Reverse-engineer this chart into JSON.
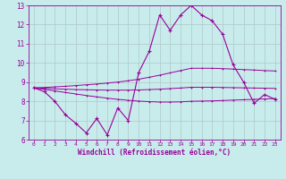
{
  "xlabel": "Windchill (Refroidissement éolien,°C)",
  "bg_color": "#c8ecec",
  "grid_color": "#b0c8c8",
  "line_color": "#990099",
  "x_values": [
    0,
    1,
    2,
    3,
    4,
    5,
    6,
    7,
    8,
    9,
    10,
    11,
    12,
    13,
    14,
    15,
    16,
    17,
    18,
    19,
    20,
    21,
    22,
    23
  ],
  "line_main": [
    8.7,
    8.5,
    8.0,
    7.3,
    6.85,
    6.35,
    7.1,
    6.25,
    7.65,
    7.0,
    9.5,
    10.6,
    12.5,
    11.7,
    12.5,
    13.0,
    12.5,
    12.2,
    11.5,
    9.9,
    9.0,
    7.9,
    8.35,
    8.1
  ],
  "line_upper": [
    8.7,
    8.72,
    8.75,
    8.78,
    8.82,
    8.86,
    8.9,
    8.95,
    9.0,
    9.07,
    9.15,
    9.25,
    9.36,
    9.48,
    9.6,
    9.72,
    9.72,
    9.72,
    9.7,
    9.68,
    9.65,
    9.63,
    9.6,
    9.58
  ],
  "line_mid": [
    8.7,
    8.68,
    8.65,
    8.63,
    8.61,
    8.6,
    8.59,
    8.58,
    8.58,
    8.58,
    8.59,
    8.61,
    8.63,
    8.66,
    8.69,
    8.73,
    8.73,
    8.73,
    8.72,
    8.71,
    8.7,
    8.69,
    8.68,
    8.67
  ],
  "line_lower": [
    8.7,
    8.62,
    8.54,
    8.46,
    8.38,
    8.3,
    8.23,
    8.16,
    8.1,
    8.05,
    8.01,
    7.98,
    7.96,
    7.96,
    7.97,
    8.0,
    8.01,
    8.02,
    8.04,
    8.06,
    8.08,
    8.1,
    8.12,
    8.14
  ],
  "ylim": [
    6,
    13
  ],
  "xlim": [
    -0.5,
    23.5
  ],
  "yticks": [
    6,
    7,
    8,
    9,
    10,
    11,
    12,
    13
  ],
  "xticks": [
    0,
    1,
    2,
    3,
    4,
    5,
    6,
    7,
    8,
    9,
    10,
    11,
    12,
    13,
    14,
    15,
    16,
    17,
    18,
    19,
    20,
    21,
    22,
    23
  ]
}
